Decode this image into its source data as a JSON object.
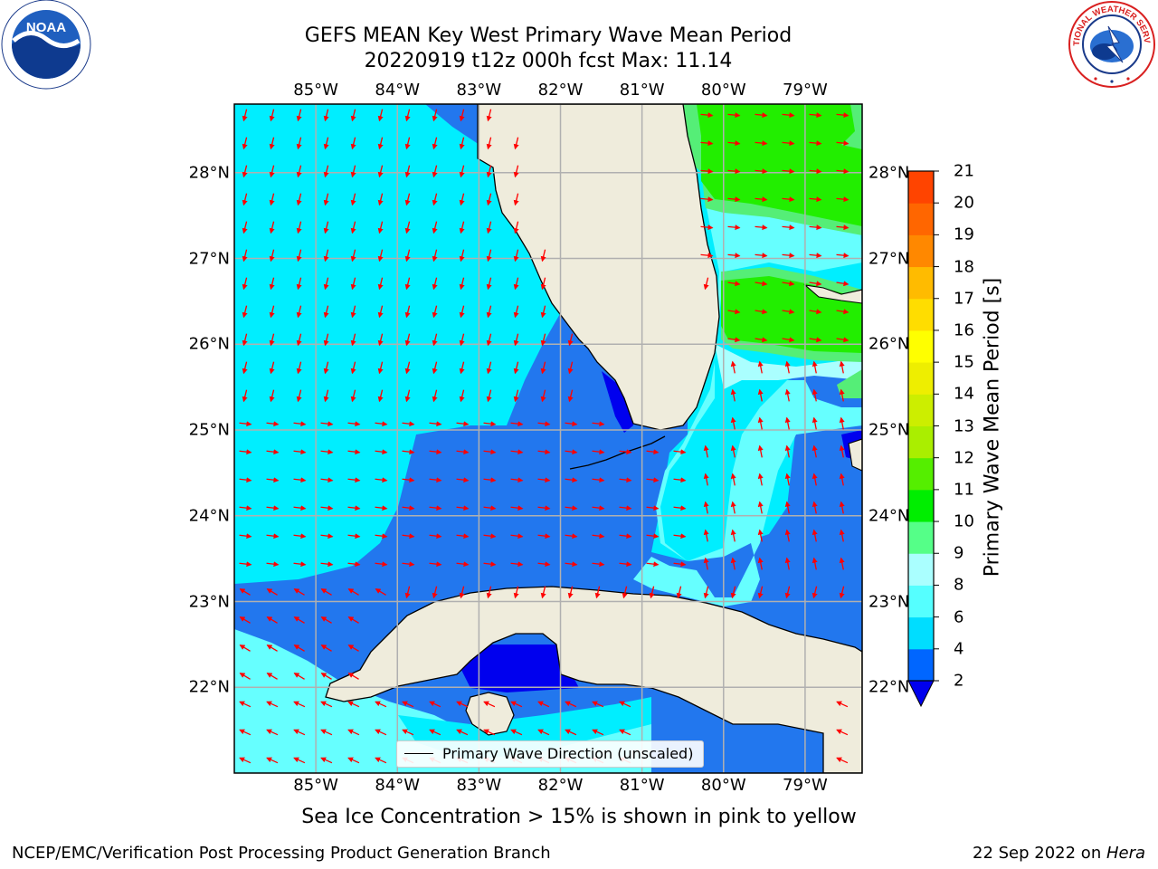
{
  "title": {
    "line1": "GEFS MEAN Key West Primary Wave Mean Period",
    "line2": "20220919 t12z 000h fcst   Max: 11.14"
  },
  "axes": {
    "lon_labels": [
      "85°W",
      "84°W",
      "83°W",
      "82°W",
      "81°W",
      "80°W",
      "79°W"
    ],
    "lat_labels": [
      "22°N",
      "23°N",
      "24°N",
      "25°N",
      "26°N",
      "27°N",
      "28°N"
    ],
    "lon_range": [
      -86.0,
      -78.3
    ],
    "lat_range": [
      21.0,
      28.8
    ]
  },
  "colorbar": {
    "label": "Primary Wave Mean Period [s]",
    "ticks": [
      "2",
      "4",
      "6",
      "8",
      "9",
      "10",
      "11",
      "12",
      "13",
      "14",
      "15",
      "16",
      "17",
      "18",
      "19",
      "20",
      "21"
    ],
    "colors": [
      "#0066ff",
      "#00ddff",
      "#55ffff",
      "#aaffff",
      "#55ff88",
      "#00ee00",
      "#55ee00",
      "#aaee00",
      "#ccee00",
      "#eeee00",
      "#ffff00",
      "#ffdd00",
      "#ffbb00",
      "#ff8800",
      "#ff6600",
      "#ff4400",
      "#ff1100"
    ],
    "under_color": "#0000ee"
  },
  "legend": {
    "label": "Primary Wave Direction (unscaled)"
  },
  "footnote": "Sea Ice Concentration > 15% is shown in pink to yellow",
  "credit_left": "NCEP/EMC/Verification Post Processing Product Generation Branch",
  "credit_right_prefix": "22 Sep 2022 on ",
  "credit_right_host": "Hera",
  "logos": {
    "left": {
      "icon": "noaa-logo",
      "text": "NOAA"
    },
    "right": {
      "icon": "national-weather-service-logo",
      "text": "NATIONAL WEATHER SERVICE"
    }
  },
  "colors": {
    "land": "#efecdc",
    "coast": "#000000",
    "grid": "#b0b0b0",
    "arrow": "#ff0000",
    "band_2_4": "#2277ee",
    "band_4_6": "#00eeff",
    "band_6_8": "#66ffff",
    "band_8_9": "#aaffff",
    "band_9_10": "#55ee77",
    "band_10_11": "#22ee00"
  }
}
